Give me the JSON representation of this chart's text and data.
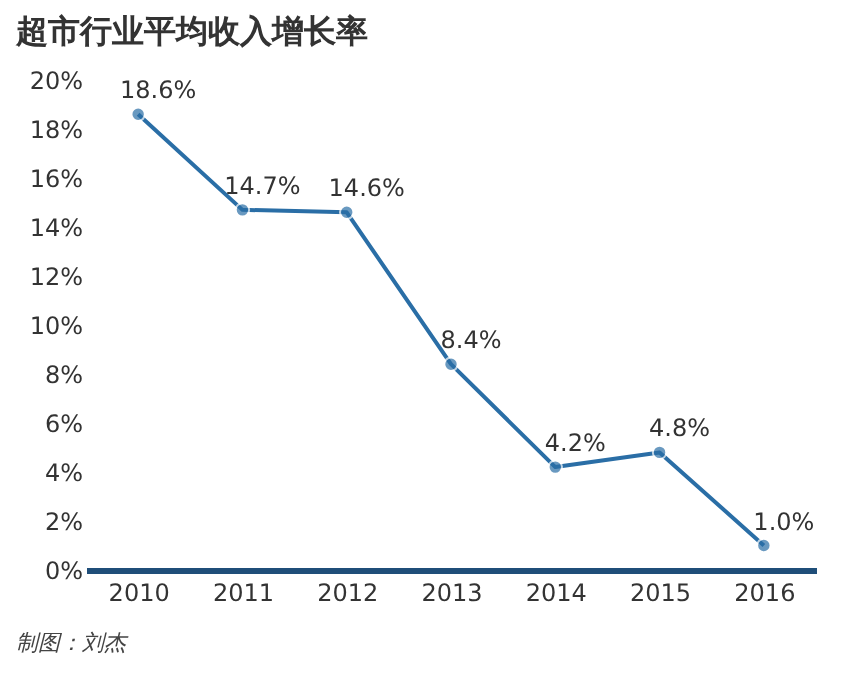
{
  "chart_data": {
    "type": "line",
    "title": "超市行业平均收入增长率",
    "categories": [
      "2010",
      "2011",
      "2012",
      "2013",
      "2014",
      "2015",
      "2016"
    ],
    "series": [
      {
        "color": "#2a6ea6",
        "values": [
          18.6,
          14.7,
          14.6,
          8.4,
          4.2,
          4.8,
          1.0
        ],
        "value_labels": [
          "18.6%",
          "14.7%",
          "14.6%",
          "8.4%",
          "4.2%",
          "4.8%",
          "1.0%"
        ]
      }
    ],
    "ylim": [
      0,
      20
    ],
    "yticks": [
      {
        "value": 0,
        "label": "0%"
      },
      {
        "value": 2,
        "label": "2%"
      },
      {
        "value": 4,
        "label": "4%"
      },
      {
        "value": 6,
        "label": "6%"
      },
      {
        "value": 8,
        "label": "8%"
      },
      {
        "value": 10,
        "label": "10%"
      },
      {
        "value": 12,
        "label": "12%"
      },
      {
        "value": 14,
        "label": "14%"
      },
      {
        "value": 16,
        "label": "16%"
      },
      {
        "value": 18,
        "label": "18%"
      },
      {
        "value": 20,
        "label": "20%"
      }
    ],
    "grid": false,
    "marker": "circle",
    "line_style": "solid",
    "annotations": [
      "制图：刘杰"
    ]
  }
}
